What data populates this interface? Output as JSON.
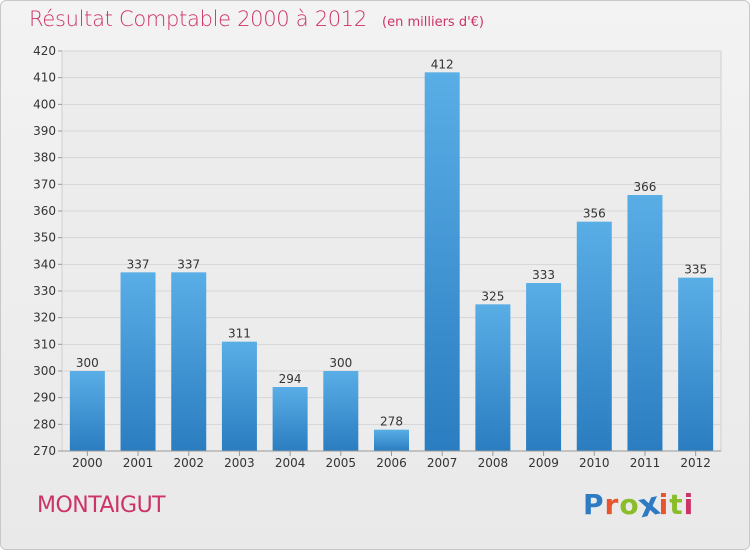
{
  "title": "Résultat Comptable 2000 à 2012",
  "unit": "(en milliers d'€)",
  "place": "MONTAIGUT",
  "brand": {
    "name": "Proxiti",
    "letter_colors": [
      "#2e7bc4",
      "#e8542e",
      "#8bbd2b",
      "#2e7bc4",
      "#e8542e",
      "#8bbd2b",
      "#cc3366"
    ]
  },
  "colors": {
    "title": "#cc3366",
    "bar_light": "#5aaee6",
    "bar_dark": "#2a7dc0",
    "grid": "#d6d6d6",
    "axis_text": "#333333"
  },
  "chart_data": {
    "type": "bar",
    "title": "Résultat Comptable 2000 à 2012",
    "xlabel": "",
    "ylabel": "",
    "categories": [
      "2000",
      "2001",
      "2002",
      "2003",
      "2004",
      "2005",
      "2006",
      "2007",
      "2008",
      "2009",
      "2010",
      "2011",
      "2012"
    ],
    "values": [
      300,
      337,
      337,
      311,
      294,
      300,
      278,
      412,
      325,
      333,
      356,
      366,
      335
    ],
    "ylim": [
      270,
      420
    ],
    "yticks": [
      270,
      280,
      290,
      300,
      310,
      320,
      330,
      340,
      350,
      360,
      370,
      380,
      390,
      400,
      410,
      420
    ],
    "grid": true,
    "data_labels": true
  }
}
